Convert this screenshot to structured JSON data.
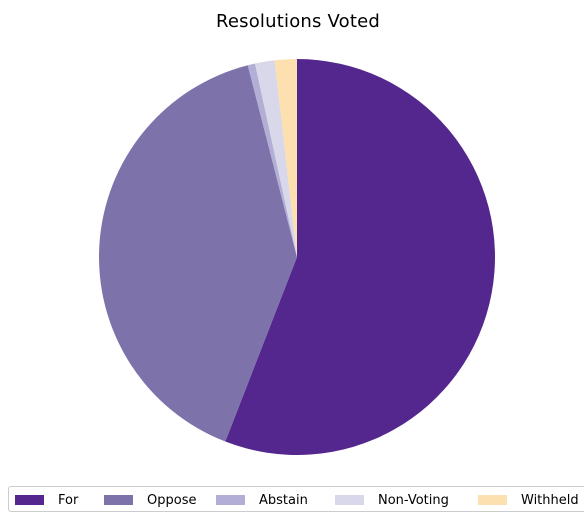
{
  "chart_data": {
    "type": "pie",
    "title": "Resolutions Voted",
    "labels": [
      "For",
      "Oppose",
      "Abstain",
      "Non-Voting",
      "Withheld"
    ],
    "values": [
      55.9,
      40.1,
      0.6,
      1.6,
      1.8
    ],
    "colors": [
      "#54278f",
      "#7e72ab",
      "#b3aed5",
      "#d9d8ea",
      "#fce0b0"
    ],
    "start_angle_deg": 90,
    "direction": "clockwise",
    "legend_position": "bottom"
  }
}
